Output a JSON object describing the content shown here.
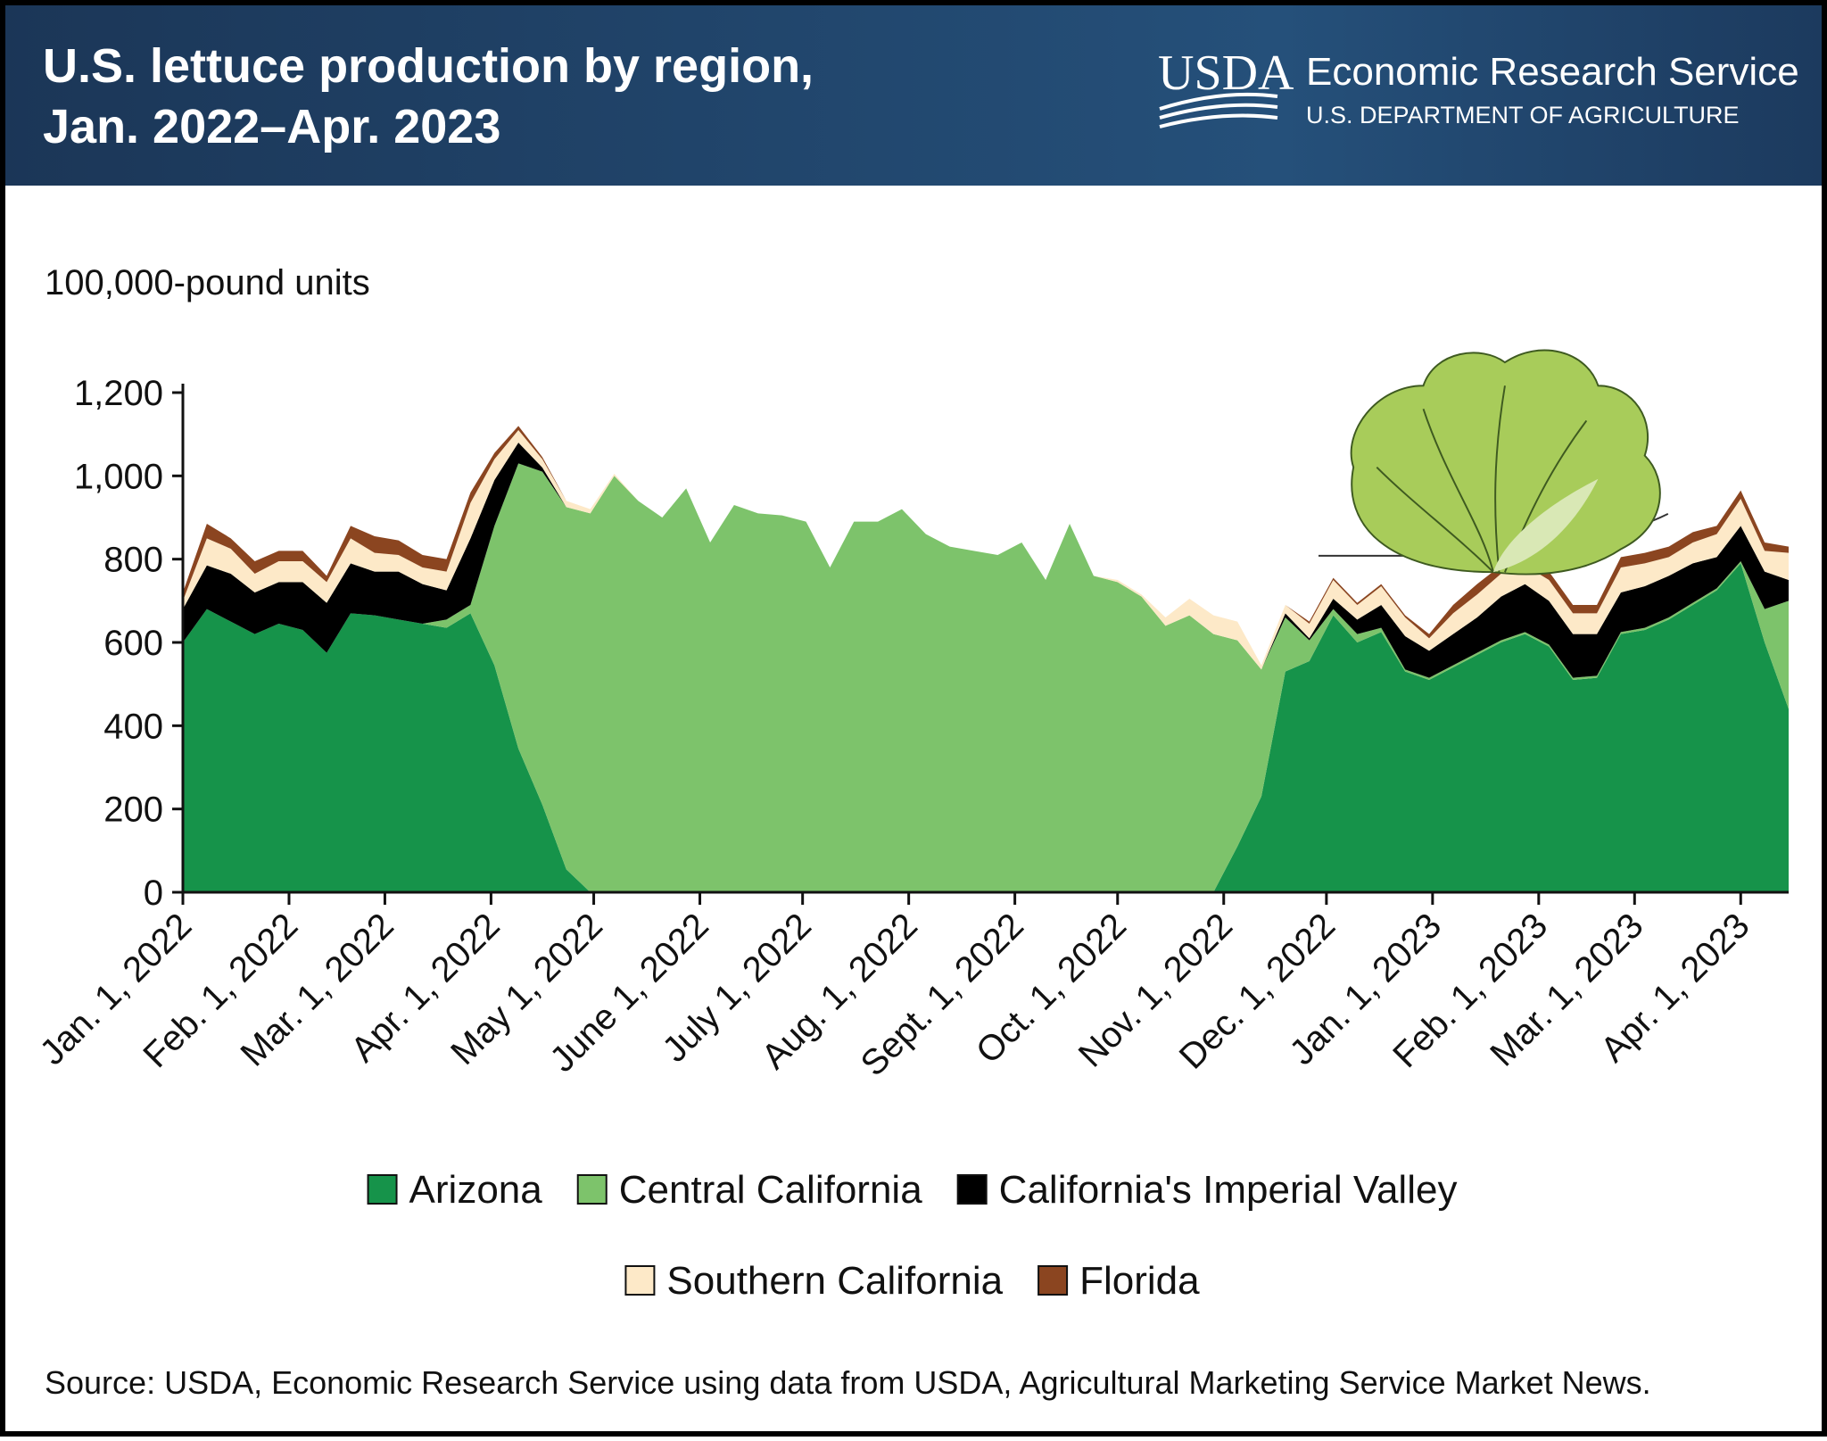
{
  "header": {
    "title_line1": "U.S. lettuce production by region,",
    "title_line2": "Jan. 2022–Apr. 2023",
    "logo": "USDA",
    "agency": "Economic Research Service",
    "department": "U.S. DEPARTMENT OF AGRICULTURE"
  },
  "chart_data": {
    "type": "stacked_area",
    "y_label": "100,000-pound units",
    "source": "Source: USDA, Economic Research Service using data from USDA, Agricultural Marketing Service Market News.",
    "x": [
      "2022-01-01",
      "2022-01-08",
      "2022-01-15",
      "2022-01-22",
      "2022-01-29",
      "2022-02-05",
      "2022-02-12",
      "2022-02-19",
      "2022-02-26",
      "2022-03-05",
      "2022-03-12",
      "2022-03-19",
      "2022-03-26",
      "2022-04-02",
      "2022-04-09",
      "2022-04-16",
      "2022-04-23",
      "2022-04-30",
      "2022-05-07",
      "2022-05-14",
      "2022-05-21",
      "2022-05-28",
      "2022-06-04",
      "2022-06-11",
      "2022-06-18",
      "2022-06-25",
      "2022-07-02",
      "2022-07-09",
      "2022-07-16",
      "2022-07-23",
      "2022-07-30",
      "2022-08-06",
      "2022-08-13",
      "2022-08-20",
      "2022-08-27",
      "2022-09-03",
      "2022-09-10",
      "2022-09-17",
      "2022-09-24",
      "2022-10-01",
      "2022-10-08",
      "2022-10-15",
      "2022-10-22",
      "2022-10-29",
      "2022-11-05",
      "2022-11-12",
      "2022-11-19",
      "2022-11-26",
      "2022-12-03",
      "2022-12-10",
      "2022-12-17",
      "2022-12-24",
      "2022-12-31",
      "2023-01-07",
      "2023-01-14",
      "2023-01-21",
      "2023-01-28",
      "2023-02-04",
      "2023-02-11",
      "2023-02-18",
      "2023-02-25",
      "2023-03-04",
      "2023-03-11",
      "2023-03-18",
      "2023-03-25",
      "2023-04-01",
      "2023-04-08",
      "2023-04-15"
    ],
    "xlim": [
      "2022-01-01",
      "2023-04-15"
    ],
    "xticks": [
      {
        "value": "2022-01-01",
        "label": "Jan. 1, 2022"
      },
      {
        "value": "2022-02-01",
        "label": "Feb. 1, 2022"
      },
      {
        "value": "2022-03-01",
        "label": "Mar. 1, 2022"
      },
      {
        "value": "2022-04-01",
        "label": "Apr. 1, 2022"
      },
      {
        "value": "2022-05-01",
        "label": "May 1, 2022"
      },
      {
        "value": "2022-06-01",
        "label": "June 1, 2022"
      },
      {
        "value": "2022-07-01",
        "label": "July 1, 2022"
      },
      {
        "value": "2022-08-01",
        "label": "Aug. 1, 2022"
      },
      {
        "value": "2022-09-01",
        "label": "Sept. 1, 2022"
      },
      {
        "value": "2022-10-01",
        "label": "Oct. 1, 2022"
      },
      {
        "value": "2022-11-01",
        "label": "Nov. 1, 2022"
      },
      {
        "value": "2022-12-01",
        "label": "Dec. 1, 2022"
      },
      {
        "value": "2023-01-01",
        "label": "Jan. 1, 2023"
      },
      {
        "value": "2023-02-01",
        "label": "Feb. 1, 2023"
      },
      {
        "value": "2023-03-01",
        "label": "Mar. 1, 2023"
      },
      {
        "value": "2023-04-01",
        "label": "Apr. 1, 2023"
      }
    ],
    "ylim": [
      0,
      1200
    ],
    "yticks": [
      0,
      200,
      400,
      600,
      800,
      {
        "value": 1000,
        "label": "1,000"
      },
      {
        "value": 1200,
        "label": "1,200"
      }
    ],
    "series": [
      {
        "name": "Arizona",
        "color": "#16934a",
        "values": [
          600,
          680,
          650,
          620,
          645,
          630,
          575,
          670,
          665,
          655,
          645,
          635,
          670,
          545,
          345,
          210,
          55,
          0,
          0,
          0,
          0,
          0,
          0,
          0,
          0,
          0,
          0,
          0,
          0,
          0,
          0,
          0,
          0,
          0,
          0,
          0,
          0,
          0,
          0,
          0,
          0,
          0,
          0,
          0,
          110,
          230,
          530,
          555,
          665,
          600,
          625,
          530,
          510,
          540,
          570,
          600,
          620,
          590,
          510,
          515,
          620,
          630,
          655,
          690,
          725,
          790,
          600,
          440
        ]
      },
      {
        "name": "Central California",
        "color": "#7dc36b",
        "values": [
          0,
          0,
          0,
          0,
          0,
          0,
          0,
          0,
          0,
          0,
          0,
          20,
          20,
          335,
          685,
          800,
          870,
          910,
          1000,
          940,
          900,
          970,
          840,
          930,
          910,
          905,
          890,
          780,
          890,
          890,
          920,
          860,
          830,
          820,
          810,
          840,
          750,
          885,
          760,
          745,
          710,
          640,
          665,
          620,
          495,
          305,
          130,
          50,
          15,
          20,
          10,
          5,
          5,
          5,
          5,
          5,
          5,
          5,
          5,
          5,
          5,
          5,
          5,
          5,
          5,
          5,
          80,
          260
        ]
      },
      {
        "name": "California's Imperial Valley",
        "color": "#000000",
        "values": [
          80,
          105,
          115,
          100,
          100,
          115,
          120,
          120,
          105,
          115,
          95,
          70,
          160,
          110,
          50,
          10,
          0,
          0,
          0,
          0,
          0,
          0,
          0,
          0,
          0,
          0,
          0,
          0,
          0,
          0,
          0,
          0,
          0,
          0,
          0,
          0,
          0,
          0,
          0,
          0,
          0,
          0,
          0,
          0,
          0,
          0,
          10,
          5,
          25,
          35,
          55,
          80,
          65,
          75,
          85,
          105,
          115,
          105,
          105,
          100,
          95,
          100,
          100,
          95,
          75,
          85,
          90,
          50
        ]
      },
      {
        "name": "Southern California",
        "color": "#fde9c8",
        "values": [
          20,
          65,
          60,
          45,
          50,
          50,
          50,
          60,
          45,
          40,
          40,
          45,
          85,
          50,
          30,
          20,
          15,
          10,
          5,
          0,
          0,
          0,
          0,
          0,
          0,
          0,
          0,
          0,
          0,
          0,
          0,
          0,
          0,
          0,
          0,
          0,
          0,
          0,
          0,
          5,
          5,
          20,
          40,
          45,
          45,
          10,
          20,
          35,
          45,
          35,
          45,
          45,
          30,
          50,
          55,
          55,
          45,
          50,
          50,
          50,
          60,
          55,
          45,
          50,
          55,
          65,
          50,
          65
        ]
      },
      {
        "name": "Florida",
        "color": "#8b4520",
        "values": [
          20,
          35,
          25,
          30,
          25,
          25,
          15,
          30,
          40,
          35,
          30,
          30,
          25,
          15,
          10,
          5,
          0,
          0,
          0,
          0,
          0,
          0,
          0,
          0,
          0,
          0,
          0,
          0,
          0,
          0,
          0,
          0,
          0,
          0,
          0,
          0,
          0,
          0,
          0,
          0,
          0,
          0,
          0,
          0,
          0,
          0,
          0,
          5,
          5,
          5,
          5,
          5,
          10,
          20,
          25,
          20,
          25,
          20,
          20,
          20,
          25,
          25,
          25,
          25,
          20,
          20,
          20,
          15
        ]
      }
    ]
  }
}
